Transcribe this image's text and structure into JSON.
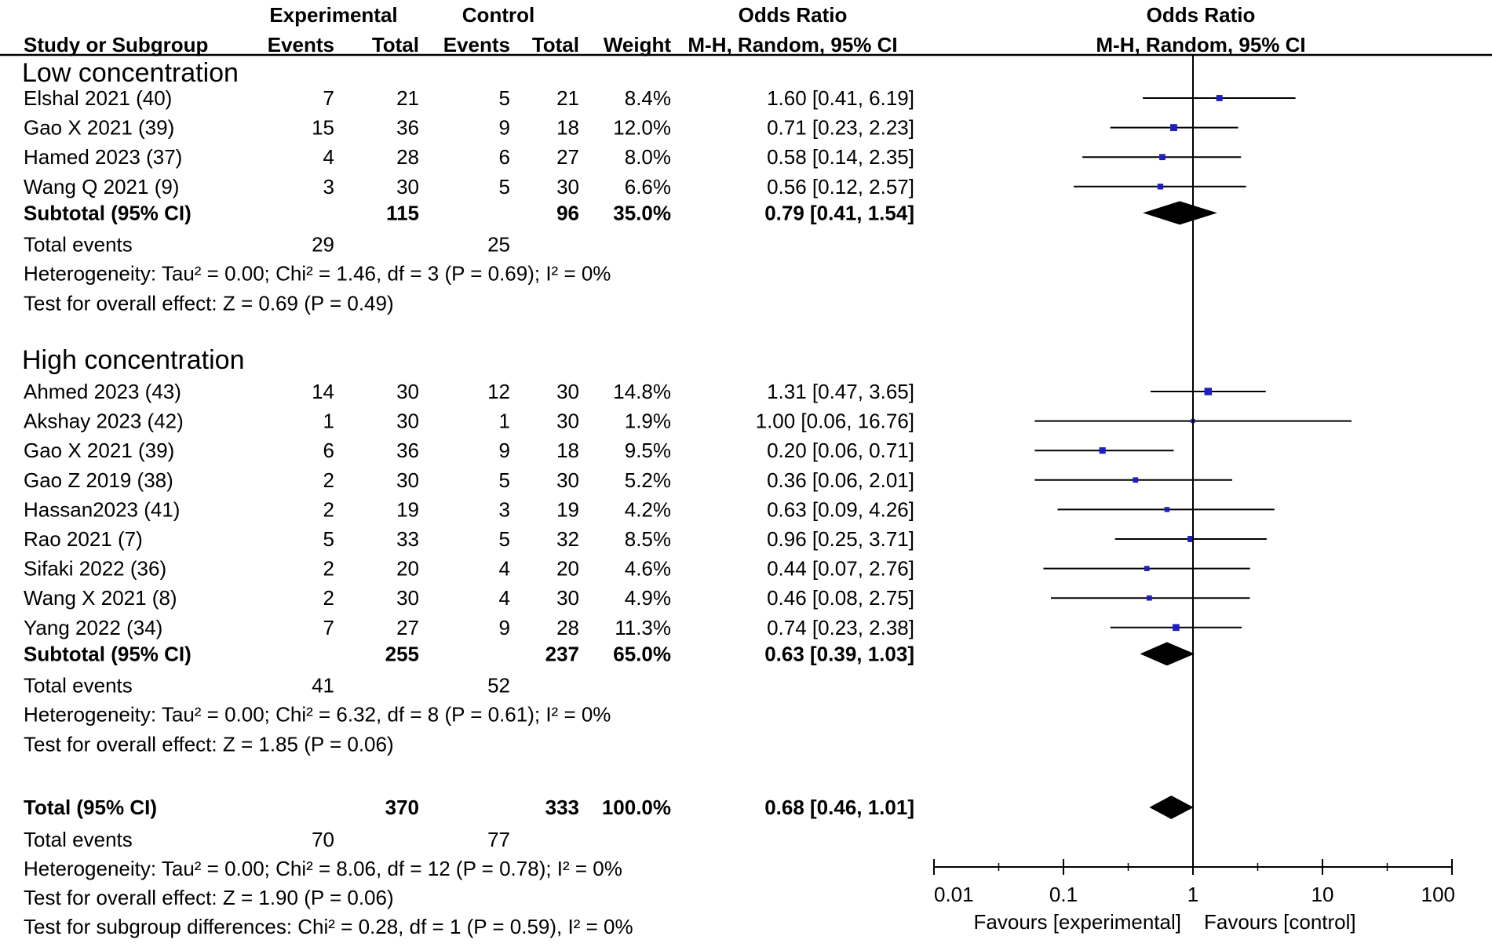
{
  "headers": {
    "experimental": "Experimental",
    "control": "Control",
    "odds_ratio": "Odds Ratio",
    "odds_ratio_plot": "Odds Ratio",
    "study": "Study or Subgroup",
    "events_exp": "Events",
    "total_exp": "Total",
    "events_ctrl": "Events",
    "total_ctrl": "Total",
    "weight": "Weight",
    "method": "M-H, Random, 95% CI",
    "method_plot": "M-H, Random, 95% CI"
  },
  "colors": {
    "marker": "#1f1fbf",
    "line": "#000000"
  },
  "chart_data": {
    "type": "forest",
    "x_scale": "log",
    "xlim": [
      0.01,
      100
    ],
    "ticks": [
      "0.01",
      "0.1",
      "1",
      "10",
      "100"
    ],
    "tick_values": [
      0.01,
      0.1,
      1,
      10,
      100
    ],
    "favours_left": "Favours [experimental]",
    "favours_right": "Favours [control]",
    "groups": [
      {
        "title": "Low concentration",
        "studies": [
          {
            "name": "Elshal 2021 (40)",
            "e_events": "7",
            "e_total": "21",
            "c_events": "5",
            "c_total": "21",
            "weight": "8.4%",
            "ci_text": "1.60 [0.41, 6.19]",
            "or": 1.6,
            "lo": 0.41,
            "hi": 6.19,
            "w": 8.4
          },
          {
            "name": "Gao X 2021 (39)",
            "e_events": "15",
            "e_total": "36",
            "c_events": "9",
            "c_total": "18",
            "weight": "12.0%",
            "ci_text": "0.71 [0.23, 2.23]",
            "or": 0.71,
            "lo": 0.23,
            "hi": 2.23,
            "w": 12.0
          },
          {
            "name": "Hamed 2023 (37)",
            "e_events": "4",
            "e_total": "28",
            "c_events": "6",
            "c_total": "27",
            "weight": "8.0%",
            "ci_text": "0.58 [0.14, 2.35]",
            "or": 0.58,
            "lo": 0.14,
            "hi": 2.35,
            "w": 8.0
          },
          {
            "name": "Wang Q 2021 (9)",
            "e_events": "3",
            "e_total": "30",
            "c_events": "5",
            "c_total": "30",
            "weight": "6.6%",
            "ci_text": "0.56 [0.12, 2.57]",
            "or": 0.56,
            "lo": 0.12,
            "hi": 2.57,
            "w": 6.6
          }
        ],
        "subtotal": {
          "label": "Subtotal (95% CI)",
          "e_total": "115",
          "c_total": "96",
          "weight": "35.0%",
          "ci_text": "0.79 [0.41, 1.54]",
          "or": 0.79,
          "lo": 0.41,
          "hi": 1.54
        },
        "total_events": {
          "label": "Total events",
          "e": "29",
          "c": "25"
        },
        "heterogeneity": "Heterogeneity: Tau² = 0.00; Chi² = 1.46, df = 3 (P = 0.69); I² = 0%",
        "overall_effect": "Test for overall effect: Z = 0.69 (P = 0.49)"
      },
      {
        "title": "High concentration",
        "studies": [
          {
            "name": "Ahmed 2023 (43)",
            "e_events": "14",
            "e_total": "30",
            "c_events": "12",
            "c_total": "30",
            "weight": "14.8%",
            "ci_text": "1.31 [0.47, 3.65]",
            "or": 1.31,
            "lo": 0.47,
            "hi": 3.65,
            "w": 14.8
          },
          {
            "name": "Akshay 2023 (42)",
            "e_events": "1",
            "e_total": "30",
            "c_events": "1",
            "c_total": "30",
            "weight": "1.9%",
            "ci_text": "1.00 [0.06, 16.76]",
            "or": 1.0,
            "lo": 0.06,
            "hi": 16.76,
            "w": 1.9
          },
          {
            "name": "Gao X 2021 (39)",
            "e_events": "6",
            "e_total": "36",
            "c_events": "9",
            "c_total": "18",
            "weight": "9.5%",
            "ci_text": "0.20 [0.06, 0.71]",
            "or": 0.2,
            "lo": 0.06,
            "hi": 0.71,
            "w": 9.5
          },
          {
            "name": "Gao Z 2019 (38)",
            "e_events": "2",
            "e_total": "30",
            "c_events": "5",
            "c_total": "30",
            "weight": "5.2%",
            "ci_text": "0.36 [0.06, 2.01]",
            "or": 0.36,
            "lo": 0.06,
            "hi": 2.01,
            "w": 5.2
          },
          {
            "name": "Hassan2023 (41)",
            "e_events": "2",
            "e_total": "19",
            "c_events": "3",
            "c_total": "19",
            "weight": "4.2%",
            "ci_text": "0.63 [0.09, 4.26]",
            "or": 0.63,
            "lo": 0.09,
            "hi": 4.26,
            "w": 4.2
          },
          {
            "name": "Rao 2021 (7)",
            "e_events": "5",
            "e_total": "33",
            "c_events": "5",
            "c_total": "32",
            "weight": "8.5%",
            "ci_text": "0.96 [0.25, 3.71]",
            "or": 0.96,
            "lo": 0.25,
            "hi": 3.71,
            "w": 8.5
          },
          {
            "name": "Sifaki 2022 (36)",
            "e_events": "2",
            "e_total": "20",
            "c_events": "4",
            "c_total": "20",
            "weight": "4.6%",
            "ci_text": "0.44 [0.07, 2.76]",
            "or": 0.44,
            "lo": 0.07,
            "hi": 2.76,
            "w": 4.6
          },
          {
            "name": "Wang X 2021 (8)",
            "e_events": "2",
            "e_total": "30",
            "c_events": "4",
            "c_total": "30",
            "weight": "4.9%",
            "ci_text": "0.46 [0.08, 2.75]",
            "or": 0.46,
            "lo": 0.08,
            "hi": 2.75,
            "w": 4.9
          },
          {
            "name": "Yang 2022 (34)",
            "e_events": "7",
            "e_total": "27",
            "c_events": "9",
            "c_total": "28",
            "weight": "11.3%",
            "ci_text": "0.74 [0.23, 2.38]",
            "or": 0.74,
            "lo": 0.23,
            "hi": 2.38,
            "w": 11.3
          }
        ],
        "subtotal": {
          "label": "Subtotal (95% CI)",
          "e_total": "255",
          "c_total": "237",
          "weight": "65.0%",
          "ci_text": "0.63 [0.39, 1.03]",
          "or": 0.63,
          "lo": 0.39,
          "hi": 1.03
        },
        "total_events": {
          "label": "Total events",
          "e": "41",
          "c": "52"
        },
        "heterogeneity": "Heterogeneity: Tau² = 0.00; Chi² = 6.32, df = 8 (P = 0.61); I² = 0%",
        "overall_effect": "Test for overall effect: Z = 1.85 (P = 0.06)"
      }
    ],
    "total": {
      "label": "Total (95% CI)",
      "e_total": "370",
      "c_total": "333",
      "weight": "100.0%",
      "ci_text": "0.68 [0.46, 1.01]",
      "or": 0.68,
      "lo": 0.46,
      "hi": 1.01
    },
    "total_events": {
      "label": "Total events",
      "e": "70",
      "c": "77"
    },
    "heterogeneity": "Heterogeneity: Tau² = 0.00; Chi² = 8.06, df = 12 (P = 0.78); I² = 0%",
    "overall_effect": "Test for overall effect: Z = 1.90 (P = 0.06)",
    "subgroup_differences": "Test for subgroup differences: Chi² = 0.28, df = 1 (P = 0.59), I² = 0%"
  }
}
